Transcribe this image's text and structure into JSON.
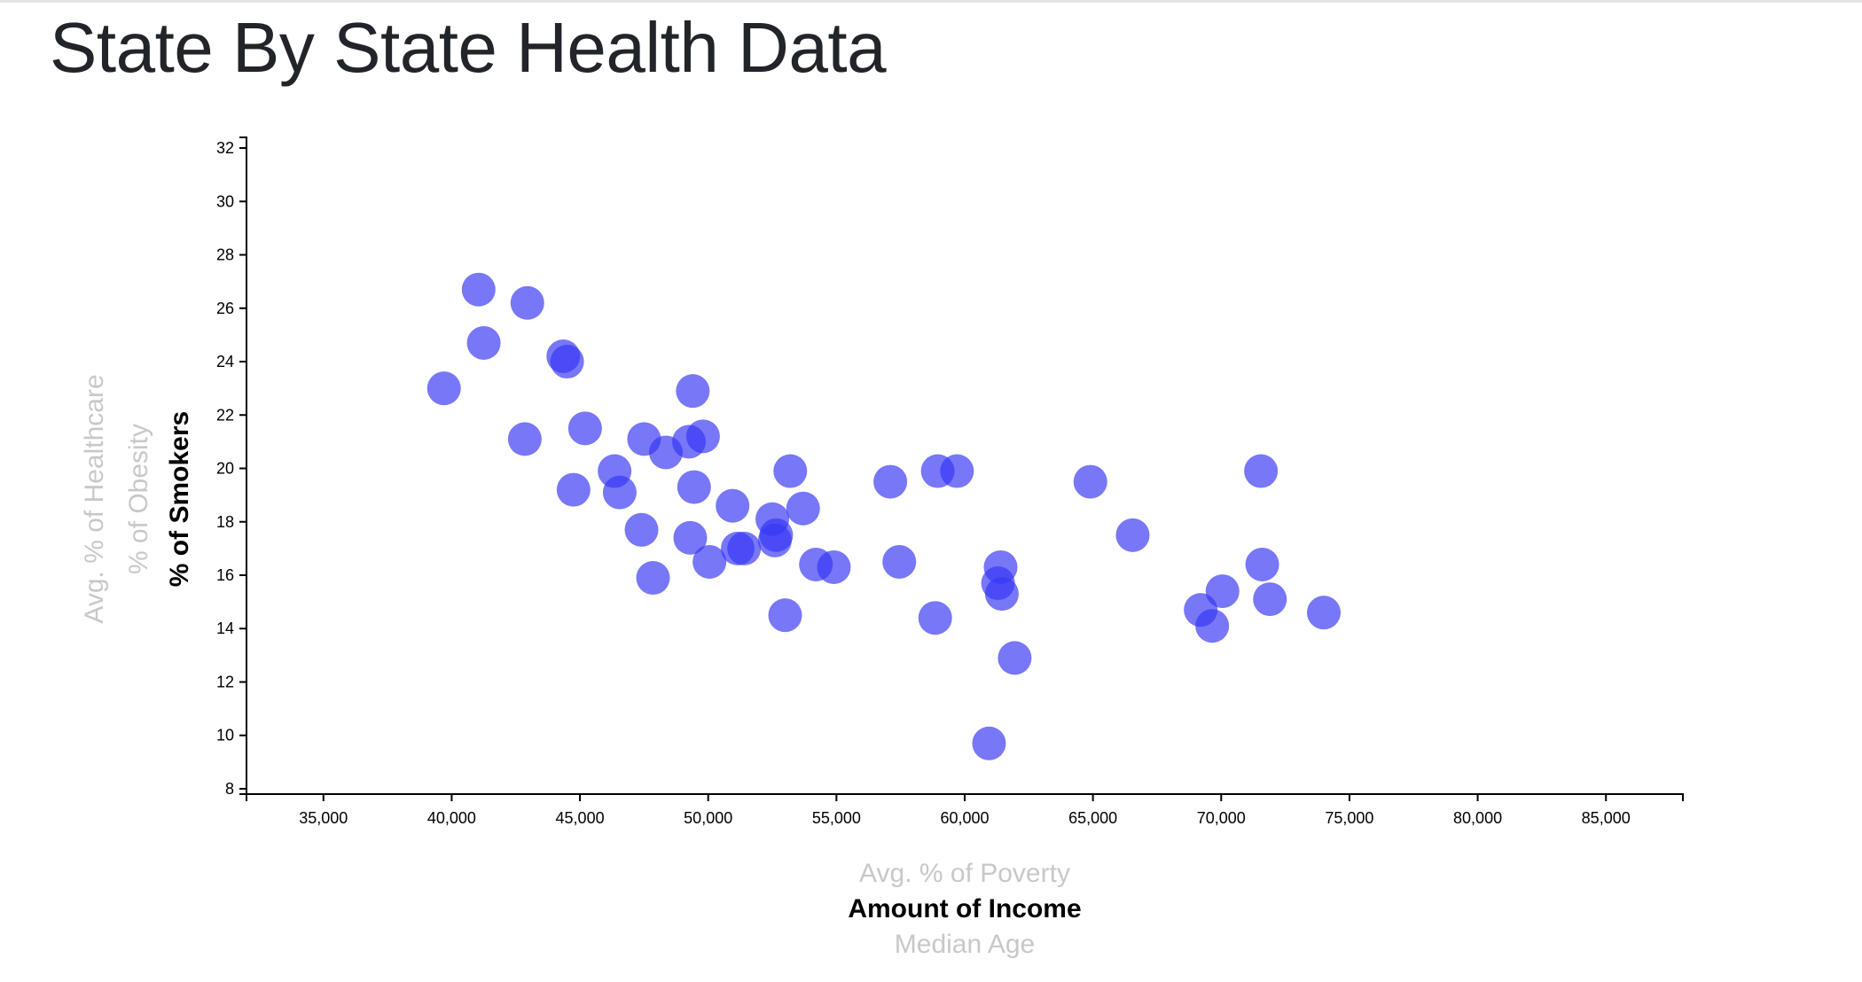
{
  "page": {
    "title": "State By State Health Data"
  },
  "chart_data": {
    "type": "scatter",
    "title": "State By State Health Data",
    "xlabel": "Amount of Income",
    "ylabel": "% of Smokers",
    "x_axis_options": [
      {
        "label": "Avg. % of Poverty",
        "active": false
      },
      {
        "label": "Amount of Income",
        "active": true
      },
      {
        "label": "Median Age",
        "active": false
      }
    ],
    "y_axis_options": [
      {
        "label": "Avg. % of Healthcare",
        "active": false
      },
      {
        "label": "% of Obesity",
        "active": false
      },
      {
        "label": "% of Smokers",
        "active": true
      }
    ],
    "xlim": [
      32000,
      88000
    ],
    "ylim": [
      7.8,
      32.4
    ],
    "x_ticks": [
      35000,
      40000,
      45000,
      50000,
      55000,
      60000,
      65000,
      70000,
      75000,
      80000,
      85000
    ],
    "x_tick_labels": [
      "35,000",
      "40,000",
      "45,000",
      "50,000",
      "55,000",
      "60,000",
      "65,000",
      "70,000",
      "75,000",
      "80,000",
      "85,000"
    ],
    "y_ticks": [
      8,
      10,
      12,
      14,
      16,
      18,
      20,
      22,
      24,
      26,
      28,
      30,
      32
    ],
    "y_tick_labels": [
      "8",
      "10",
      "12",
      "14",
      "16",
      "18",
      "20",
      "22",
      "24",
      "26",
      "28",
      "30",
      "32"
    ],
    "grid": false,
    "marker_color": "#3737f5",
    "points": [
      {
        "x": 39700,
        "y": 23.0
      },
      {
        "x": 41050,
        "y": 26.7
      },
      {
        "x": 41250,
        "y": 24.7
      },
      {
        "x": 42850,
        "y": 21.1
      },
      {
        "x": 42950,
        "y": 26.2
      },
      {
        "x": 44350,
        "y": 24.2
      },
      {
        "x": 44500,
        "y": 24.0
      },
      {
        "x": 44750,
        "y": 19.2
      },
      {
        "x": 45200,
        "y": 21.5
      },
      {
        "x": 46350,
        "y": 19.9
      },
      {
        "x": 46550,
        "y": 19.1
      },
      {
        "x": 47400,
        "y": 17.7
      },
      {
        "x": 47500,
        "y": 21.1
      },
      {
        "x": 47850,
        "y": 15.9
      },
      {
        "x": 48350,
        "y": 20.6
      },
      {
        "x": 49250,
        "y": 21.0
      },
      {
        "x": 49300,
        "y": 17.4
      },
      {
        "x": 49400,
        "y": 22.9
      },
      {
        "x": 49450,
        "y": 19.3
      },
      {
        "x": 49800,
        "y": 21.2
      },
      {
        "x": 50050,
        "y": 16.5
      },
      {
        "x": 50950,
        "y": 18.6
      },
      {
        "x": 51150,
        "y": 17.0
      },
      {
        "x": 51400,
        "y": 17.0
      },
      {
        "x": 52500,
        "y": 18.1
      },
      {
        "x": 52600,
        "y": 17.3
      },
      {
        "x": 52650,
        "y": 17.5
      },
      {
        "x": 53000,
        "y": 14.5
      },
      {
        "x": 53200,
        "y": 19.9
      },
      {
        "x": 53700,
        "y": 18.5
      },
      {
        "x": 54200,
        "y": 16.4
      },
      {
        "x": 54900,
        "y": 16.3
      },
      {
        "x": 57100,
        "y": 19.5
      },
      {
        "x": 57450,
        "y": 16.5
      },
      {
        "x": 58850,
        "y": 14.4
      },
      {
        "x": 58950,
        "y": 19.9
      },
      {
        "x": 59700,
        "y": 19.9
      },
      {
        "x": 60950,
        "y": 9.7
      },
      {
        "x": 61300,
        "y": 15.7
      },
      {
        "x": 61400,
        "y": 16.3
      },
      {
        "x": 61450,
        "y": 15.3
      },
      {
        "x": 61950,
        "y": 12.9
      },
      {
        "x": 64900,
        "y": 19.5
      },
      {
        "x": 66550,
        "y": 17.5
      },
      {
        "x": 69200,
        "y": 14.7
      },
      {
        "x": 69650,
        "y": 14.1
      },
      {
        "x": 70050,
        "y": 15.4
      },
      {
        "x": 71550,
        "y": 19.9
      },
      {
        "x": 71600,
        "y": 16.4
      },
      {
        "x": 71900,
        "y": 15.1
      },
      {
        "x": 74000,
        "y": 14.6
      }
    ]
  }
}
